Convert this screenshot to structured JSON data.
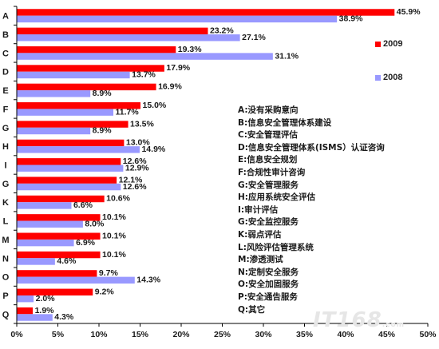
{
  "chart_data": {
    "type": "bar",
    "orientation": "horizontal",
    "categories": [
      "A",
      "B",
      "C",
      "D",
      "E",
      "F",
      "G",
      "H",
      "I",
      "G",
      "K",
      "L",
      "M",
      "N",
      "O",
      "P",
      "Q"
    ],
    "series": [
      {
        "name": "2009",
        "color": "#ff0000",
        "values": [
          45.9,
          23.2,
          19.3,
          17.9,
          16.9,
          15.0,
          13.5,
          13.0,
          12.6,
          12.1,
          10.6,
          10.1,
          10.1,
          10.1,
          9.7,
          9.2,
          1.9
        ]
      },
      {
        "name": "2008",
        "color": "#9999ff",
        "values": [
          38.9,
          27.1,
          31.1,
          13.7,
          8.9,
          11.7,
          8.9,
          14.9,
          12.9,
          12.6,
          6.6,
          8.0,
          6.9,
          4.6,
          14.3,
          2.0,
          4.3
        ]
      }
    ],
    "data_labels": {
      "2009": [
        "45.9%",
        "23.2%",
        "19.3%",
        "17.9%",
        "16.9%",
        "15.0%",
        "13.5%",
        "13.0%",
        "12.6%",
        "12.1%",
        "10.6%",
        "10.1%",
        "10.1%",
        "10.1%",
        "9.7%",
        "9.2%",
        "1.9%"
      ],
      "2008": [
        "38.9%",
        "27.1%",
        "31.1%",
        "13.7%",
        "8.9%",
        "11.7%",
        "8.9%",
        "14.9%",
        "12.9%",
        "12.6%",
        "6.6%",
        "8.0%",
        "6.9%",
        "4.6%",
        "14.3%",
        "2.0%",
        "4.3%"
      ]
    },
    "x_ticks": [
      "0%",
      "5%",
      "10%",
      "15%",
      "20%",
      "25%",
      "30%",
      "35%",
      "40%",
      "45%",
      "50%"
    ],
    "xlim": [
      0,
      50
    ],
    "grid": false,
    "legend_position": "right",
    "title": "",
    "xlabel": "",
    "ylabel": ""
  },
  "legend": {
    "items": [
      "2009",
      "2008"
    ]
  },
  "category_key": [
    "A:没有采购意向",
    "B:信息安全管理体系建设",
    "C:安全管理评估",
    "D:信息安全管理体系(ISMS）认证咨询",
    "E:信息安全规划",
    "F:合规性审计咨询",
    "G:安全管理服务",
    "H:应用系统安全评估",
    "I:审计评估",
    "G:安全监控服务",
    "K:弱点评估",
    "L:风险评估管理系统",
    "M:渗透测试",
    "N:定制安全服务",
    "O:安全加固服务",
    "P:安全通告服务",
    "Q:其它"
  ],
  "watermark": {
    "main": "IT168",
    "suffix": ".com"
  }
}
